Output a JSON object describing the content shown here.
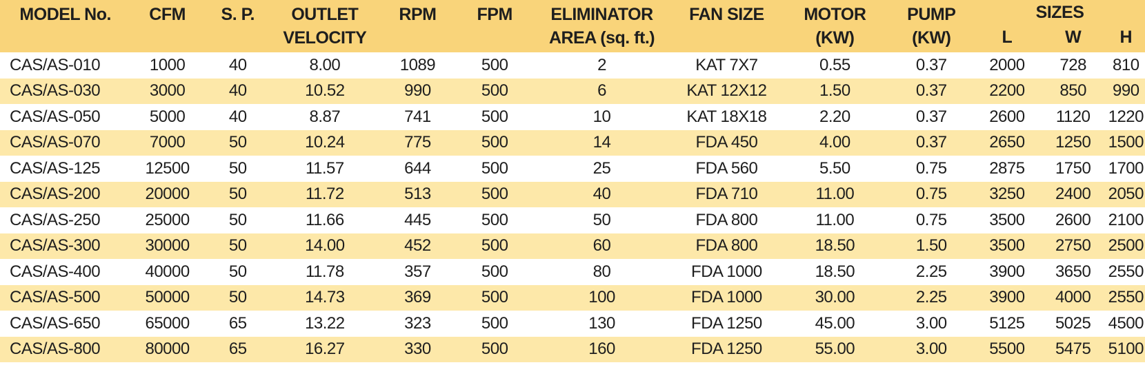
{
  "table": {
    "headers": {
      "model": "MODEL No.",
      "cfm": "CFM",
      "sp": "S. P.",
      "outlet_1": "OUTLET",
      "outlet_2": "VELOCITY",
      "rpm": "RPM",
      "fpm": "FPM",
      "elim_1": "ELIMINATOR",
      "elim_2": "AREA (sq. ft.)",
      "fan": "FAN SIZE",
      "motor_1": "MOTOR",
      "motor_2": "(KW)",
      "pump_1": "PUMP",
      "pump_2": "(KW)",
      "sizes": "SIZES",
      "l": "L",
      "w": "W",
      "h": "H"
    },
    "rows": [
      [
        "CAS/AS-010",
        "1000",
        "40",
        "8.00",
        "1089",
        "500",
        "2",
        "KAT 7X7",
        "0.55",
        "0.37",
        "2000",
        "728",
        "810"
      ],
      [
        "CAS/AS-030",
        "3000",
        "40",
        "10.52",
        "990",
        "500",
        "6",
        "KAT 12X12",
        "1.50",
        "0.37",
        "2200",
        "850",
        "990"
      ],
      [
        "CAS/AS-050",
        "5000",
        "40",
        "8.87",
        "741",
        "500",
        "10",
        "KAT 18X18",
        "2.20",
        "0.37",
        "2600",
        "1120",
        "1220"
      ],
      [
        "CAS/AS-070",
        "7000",
        "50",
        "10.24",
        "775",
        "500",
        "14",
        "FDA 450",
        "4.00",
        "0.37",
        "2650",
        "1250",
        "1500"
      ],
      [
        "CAS/AS-125",
        "12500",
        "50",
        "11.57",
        "644",
        "500",
        "25",
        "FDA 560",
        "5.50",
        "0.75",
        "2875",
        "1750",
        "1700"
      ],
      [
        "CAS/AS-200",
        "20000",
        "50",
        "11.72",
        "513",
        "500",
        "40",
        "FDA 710",
        "11.00",
        "0.75",
        "3250",
        "2400",
        "2050"
      ],
      [
        "CAS/AS-250",
        "25000",
        "50",
        "11.66",
        "445",
        "500",
        "50",
        "FDA 800",
        "11.00",
        "0.75",
        "3500",
        "2600",
        "2100"
      ],
      [
        "CAS/AS-300",
        "30000",
        "50",
        "14.00",
        "452",
        "500",
        "60",
        "FDA 800",
        "18.50",
        "1.50",
        "3500",
        "2750",
        "2500"
      ],
      [
        "CAS/AS-400",
        "40000",
        "50",
        "11.78",
        "357",
        "500",
        "80",
        "FDA 1000",
        "18.50",
        "2.25",
        "3900",
        "3650",
        "2550"
      ],
      [
        "CAS/AS-500",
        "50000",
        "50",
        "14.73",
        "369",
        "500",
        "100",
        "FDA 1000",
        "30.00",
        "2.25",
        "3900",
        "4000",
        "2550"
      ],
      [
        "CAS/AS-650",
        "65000",
        "65",
        "13.22",
        "323",
        "500",
        "130",
        "FDA 1250",
        "45.00",
        "3.00",
        "5125",
        "5025",
        "4500"
      ],
      [
        "CAS/AS-800",
        "80000",
        "65",
        "16.27",
        "330",
        "500",
        "160",
        "FDA 1250",
        "55.00",
        "3.00",
        "5500",
        "5475",
        "5100"
      ]
    ]
  }
}
